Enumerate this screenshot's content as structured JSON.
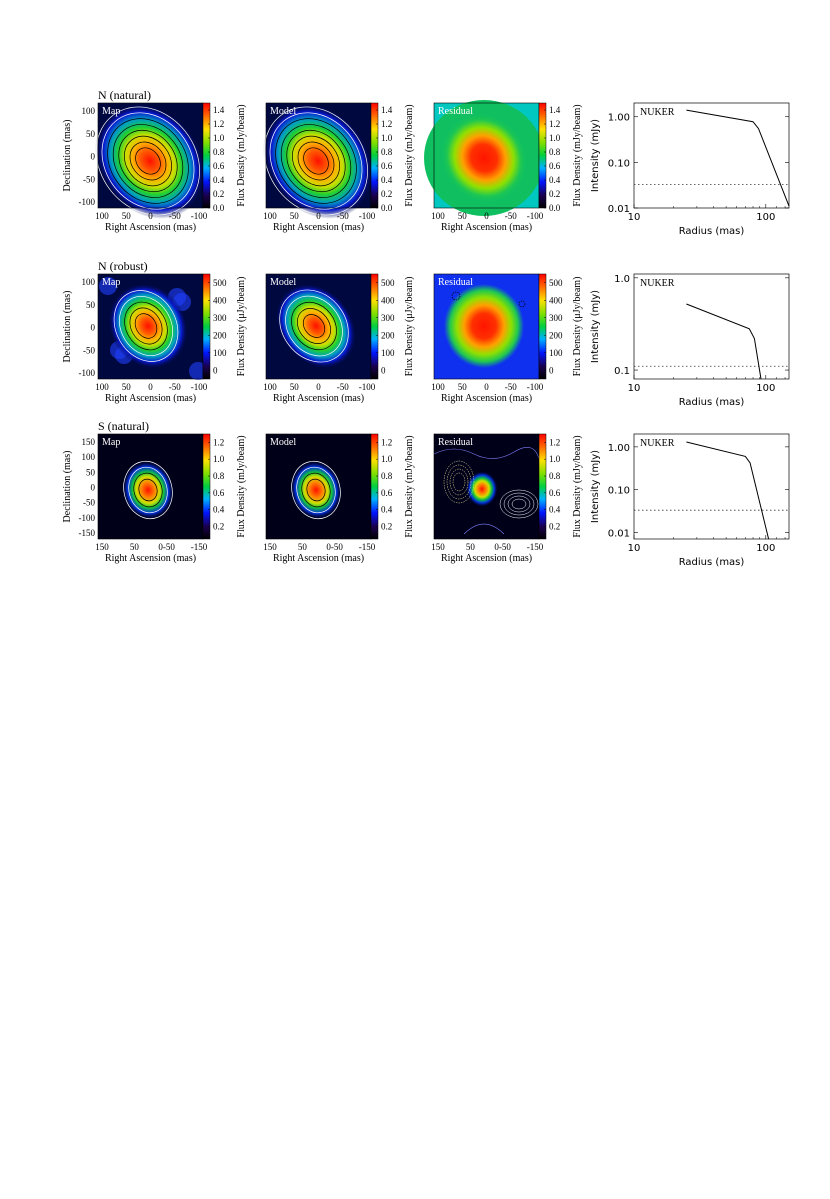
{
  "figure": {
    "rows": [
      {
        "title": "N (natural)",
        "unit_label": "Flux Density (mJy/beam)",
        "x_label": "Right Ascension (mas)",
        "y_label": "Declination (mas)",
        "panel_labels": [
          "Map",
          "Model",
          "Residual"
        ],
        "x_ticks": [
          "100",
          "50",
          "0",
          "-50",
          "-100"
        ],
        "y_ticks": [
          "100",
          "50",
          "0",
          "-50",
          "-100"
        ],
        "colorbar_ticks": [
          "1.4",
          "1.2",
          "1.0",
          "0.8",
          "0.6",
          "0.4",
          "0.2",
          "0.0"
        ],
        "colorbar_range": [
          0.0,
          1.5
        ],
        "profile": {
          "legend": "NUKER",
          "x_label": "Radius (mas)",
          "y_label": "Intensity (mJy)",
          "x_scale": "log",
          "y_scale": "log",
          "x_ticks": [
            "10",
            "100"
          ],
          "y_ticks": [
            "1.00",
            "0.10",
            "0.01"
          ],
          "xlim": [
            10,
            150
          ],
          "ylim": [
            0.01,
            2.0
          ],
          "noise_level": 0.033,
          "model_x": [
            25,
            80,
            88,
            150
          ],
          "model_y": [
            1.4,
            0.78,
            0.55,
            0.011
          ]
        }
      },
      {
        "title": "N (robust)",
        "unit_label": "Flux Density (μJy/beam)",
        "x_label": "Right Ascension (mas)",
        "y_label": "Declination (mas)",
        "panel_labels": [
          "Map",
          "Model",
          "Residual"
        ],
        "x_ticks": [
          "100",
          "50",
          "0",
          "-50",
          "-100"
        ],
        "y_ticks": [
          "100",
          "50",
          "0",
          "-50",
          "-100"
        ],
        "colorbar_ticks": [
          "500",
          "400",
          "300",
          "200",
          "100",
          "0"
        ],
        "colorbar_range": [
          -50,
          550
        ],
        "profile": {
          "legend": "NUKER",
          "x_label": "Radius (mas)",
          "y_label": "Intensity (mJy)",
          "x_scale": "log",
          "y_scale": "log",
          "x_ticks": [
            "10",
            "100"
          ],
          "y_ticks": [
            "1.0",
            "0.1"
          ],
          "xlim": [
            10,
            150
          ],
          "ylim": [
            0.08,
            1.1
          ],
          "noise_level": 0.11,
          "model_x": [
            25,
            75,
            82,
            92
          ],
          "model_y": [
            0.52,
            0.28,
            0.22,
            0.08
          ]
        }
      },
      {
        "title": "S (natural)",
        "unit_label": "Flux Density (mJy/beam)",
        "x_label": "Right Ascension (mas)",
        "y_label": "Declination (mas)",
        "panel_labels": [
          "Map",
          "Model",
          "Residual"
        ],
        "x_ticks": [
          "150",
          "50",
          "0-50",
          "-150"
        ],
        "y_ticks": [
          "150",
          "100",
          "50",
          "0",
          "-50",
          "-100",
          "-150"
        ],
        "colorbar_ticks": [
          "1.2",
          "1.0",
          "0.8",
          "0.6",
          "0.4",
          "0.2"
        ],
        "colorbar_range": [
          0.05,
          1.3
        ],
        "profile": {
          "legend": "NUKER",
          "x_label": "Radius (mas)",
          "y_label": "Intensity (mJy)",
          "x_scale": "log",
          "y_scale": "log",
          "x_ticks": [
            "10",
            "100"
          ],
          "y_ticks": [
            "1.00",
            "0.10",
            "0.01"
          ],
          "xlim": [
            10,
            150
          ],
          "ylim": [
            0.007,
            2.0
          ],
          "noise_level": 0.033,
          "model_x": [
            25,
            70,
            76,
            105
          ],
          "model_y": [
            1.3,
            0.6,
            0.42,
            0.007
          ]
        }
      }
    ]
  },
  "chart_data": [
    {
      "type": "line",
      "title": "N (natural)",
      "xlabel": "Radius (mas)",
      "ylabel": "Intensity (mJy)",
      "xlim": [
        10,
        150
      ],
      "ylim": [
        0.01,
        2.0
      ],
      "series": [
        {
          "name": "NUKER",
          "x": [
            25,
            80,
            88,
            150
          ],
          "y": [
            1.4,
            0.78,
            0.55,
            0.011
          ]
        }
      ],
      "noise_level": 0.033
    },
    {
      "type": "line",
      "title": "N (robust)",
      "xlabel": "Radius (mas)",
      "ylabel": "Intensity (mJy)",
      "xlim": [
        10,
        150
      ],
      "ylim": [
        0.08,
        1.1
      ],
      "series": [
        {
          "name": "NUKER",
          "x": [
            25,
            75,
            82,
            92
          ],
          "y": [
            0.52,
            0.28,
            0.22,
            0.08
          ]
        }
      ],
      "noise_level": 0.11
    },
    {
      "type": "line",
      "title": "S (natural)",
      "xlabel": "Radius (mas)",
      "ylabel": "Intensity (mJy)",
      "xlim": [
        10,
        150
      ],
      "ylim": [
        0.007,
        2.0
      ],
      "series": [
        {
          "name": "NUKER",
          "x": [
            25,
            70,
            76,
            105
          ],
          "y": [
            1.3,
            0.6,
            0.42,
            0.007
          ]
        }
      ],
      "noise_level": 0.033
    }
  ]
}
